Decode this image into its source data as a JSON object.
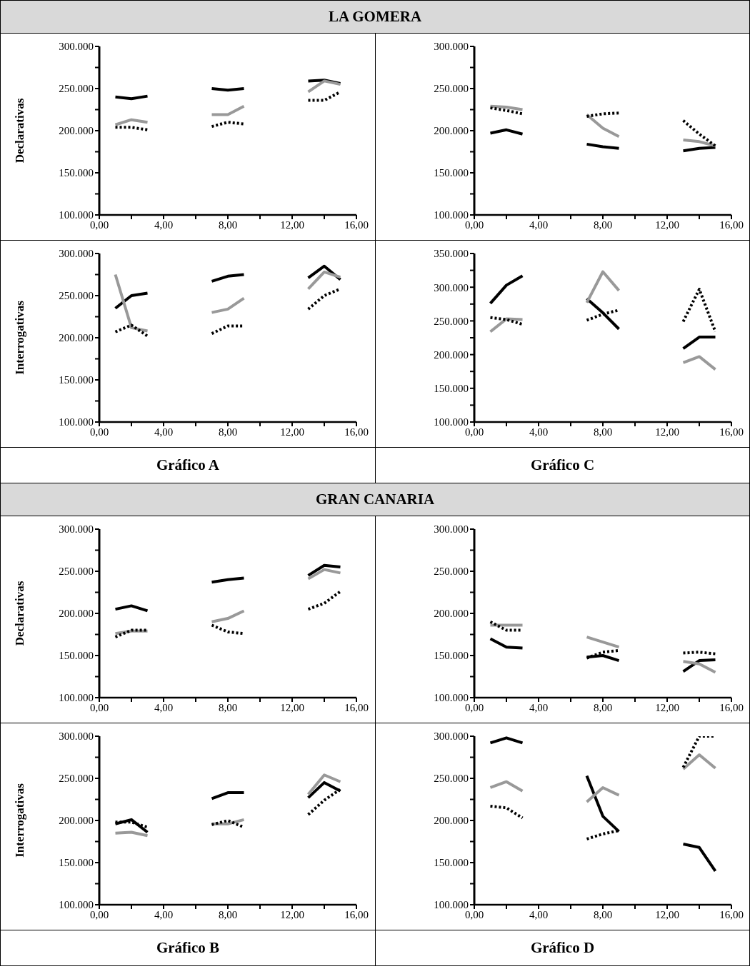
{
  "chart_data": [
    {
      "type": "line",
      "title": "LA GOMERA",
      "ylabel": "Declarativas",
      "xlim": [
        0,
        16
      ],
      "ylim": [
        100000,
        300000
      ],
      "xticks": [
        {
          "value": 0,
          "label": "0,00"
        },
        {
          "value": 2,
          "label": null
        },
        {
          "value": 4,
          "label": "4,00"
        },
        {
          "value": 6,
          "label": null
        },
        {
          "value": 8,
          "label": "8,00"
        },
        {
          "value": 10,
          "label": null
        },
        {
          "value": 12,
          "label": "12,00"
        },
        {
          "value": 14,
          "label": null
        },
        {
          "value": 16,
          "label": "16,00"
        }
      ],
      "yticks": [
        {
          "value": 100000,
          "label": "100.000"
        },
        {
          "value": 125000,
          "label": null
        },
        {
          "value": 150000,
          "label": "150.000"
        },
        {
          "value": 175000,
          "label": null
        },
        {
          "value": 200000,
          "label": "200.000"
        },
        {
          "value": 225000,
          "label": null
        },
        {
          "value": 250000,
          "label": "250.000"
        },
        {
          "value": 275000,
          "label": null
        },
        {
          "value": 300000,
          "label": "300.000"
        }
      ],
      "series": [
        {
          "color": "#000000",
          "line_style": "solid",
          "x": [
            1,
            2,
            3
          ],
          "values": [
            240000,
            238000,
            241000
          ]
        },
        {
          "color": "#000000",
          "line_style": "solid",
          "x": [
            7,
            8,
            9
          ],
          "values": [
            250000,
            248000,
            250000
          ]
        },
        {
          "color": "#000000",
          "line_style": "solid",
          "x": [
            13,
            14,
            15
          ],
          "values": [
            259000,
            260000,
            256000
          ]
        },
        {
          "color": "#999999",
          "line_style": "solid",
          "x": [
            1,
            2,
            3
          ],
          "values": [
            207000,
            213000,
            210000
          ]
        },
        {
          "color": "#999999",
          "line_style": "solid",
          "x": [
            7,
            8,
            9
          ],
          "values": [
            219000,
            219000,
            229000
          ]
        },
        {
          "color": "#999999",
          "line_style": "solid",
          "x": [
            13,
            14,
            15
          ],
          "values": [
            246000,
            259000,
            255000
          ]
        },
        {
          "color": "#000000",
          "line_style": "dotted",
          "x": [
            1,
            2,
            3
          ],
          "values": [
            204000,
            204000,
            201000
          ]
        },
        {
          "color": "#000000",
          "line_style": "dotted",
          "x": [
            7,
            8,
            9
          ],
          "values": [
            205000,
            210000,
            208000
          ]
        },
        {
          "color": "#000000",
          "line_style": "dotted",
          "x": [
            13,
            14,
            15
          ],
          "values": [
            236000,
            236000,
            246000
          ]
        }
      ]
    },
    {
      "type": "line",
      "xlim": [
        0,
        16
      ],
      "ylim": [
        100000,
        300000
      ],
      "xticks": [
        {
          "value": 0,
          "label": "0,00"
        },
        {
          "value": 2,
          "label": null
        },
        {
          "value": 4,
          "label": "4,00"
        },
        {
          "value": 6,
          "label": null
        },
        {
          "value": 8,
          "label": "8,00"
        },
        {
          "value": 10,
          "label": null
        },
        {
          "value": 12,
          "label": "12,00"
        },
        {
          "value": 14,
          "label": null
        },
        {
          "value": 16,
          "label": "16,00"
        }
      ],
      "yticks": [
        {
          "value": 100000,
          "label": "100.000"
        },
        {
          "value": 125000,
          "label": null
        },
        {
          "value": 150000,
          "label": "150.000"
        },
        {
          "value": 175000,
          "label": null
        },
        {
          "value": 200000,
          "label": "200.000"
        },
        {
          "value": 225000,
          "label": null
        },
        {
          "value": 250000,
          "label": "250.000"
        },
        {
          "value": 275000,
          "label": null
        },
        {
          "value": 300000,
          "label": "300.000"
        }
      ],
      "series": [
        {
          "color": "#000000",
          "line_style": "solid",
          "x": [
            1,
            2,
            3
          ],
          "values": [
            197000,
            201000,
            196000
          ]
        },
        {
          "color": "#000000",
          "line_style": "solid",
          "x": [
            7,
            8,
            9
          ],
          "values": [
            184000,
            181000,
            179000
          ]
        },
        {
          "color": "#000000",
          "line_style": "solid",
          "x": [
            13,
            14,
            15
          ],
          "values": [
            176000,
            179000,
            180000
          ]
        },
        {
          "color": "#999999",
          "line_style": "solid",
          "x": [
            1,
            2,
            3
          ],
          "values": [
            229000,
            228000,
            225000
          ]
        },
        {
          "color": "#999999",
          "line_style": "solid",
          "x": [
            7,
            8,
            9
          ],
          "values": [
            219000,
            203000,
            193000
          ]
        },
        {
          "color": "#999999",
          "line_style": "solid",
          "x": [
            13,
            14,
            15
          ],
          "values": [
            189000,
            187000,
            182000
          ]
        },
        {
          "color": "#000000",
          "line_style": "dotted",
          "x": [
            1,
            2,
            3
          ],
          "values": [
            227000,
            224000,
            220000
          ]
        },
        {
          "color": "#000000",
          "line_style": "dotted",
          "x": [
            7,
            8,
            9
          ],
          "values": [
            217000,
            220000,
            221000
          ]
        },
        {
          "color": "#000000",
          "line_style": "dotted",
          "x": [
            13,
            14,
            15
          ],
          "values": [
            212000,
            196000,
            182000
          ]
        }
      ]
    },
    {
      "type": "line",
      "ylabel": "Interrogativas",
      "xlabel": "Gráfico A",
      "xlim": [
        0,
        16
      ],
      "ylim": [
        100000,
        300000
      ],
      "xticks": [
        {
          "value": 0,
          "label": "0,00"
        },
        {
          "value": 2,
          "label": null
        },
        {
          "value": 4,
          "label": "4,00"
        },
        {
          "value": 6,
          "label": null
        },
        {
          "value": 8,
          "label": "8,00"
        },
        {
          "value": 10,
          "label": null
        },
        {
          "value": 12,
          "label": "12,00"
        },
        {
          "value": 14,
          "label": null
        },
        {
          "value": 16,
          "label": "16,00"
        }
      ],
      "yticks": [
        {
          "value": 100000,
          "label": "100.000"
        },
        {
          "value": 125000,
          "label": null
        },
        {
          "value": 150000,
          "label": "150.000"
        },
        {
          "value": 175000,
          "label": null
        },
        {
          "value": 200000,
          "label": "200.000"
        },
        {
          "value": 225000,
          "label": null
        },
        {
          "value": 250000,
          "label": "250.000"
        },
        {
          "value": 275000,
          "label": null
        },
        {
          "value": 300000,
          "label": "300.000"
        }
      ],
      "series": [
        {
          "color": "#000000",
          "line_style": "solid",
          "x": [
            1,
            2,
            3
          ],
          "values": [
            235000,
            250000,
            253000
          ]
        },
        {
          "color": "#000000",
          "line_style": "solid",
          "x": [
            7,
            8,
            9
          ],
          "values": [
            267000,
            273000,
            275000
          ]
        },
        {
          "color": "#000000",
          "line_style": "solid",
          "x": [
            13,
            14,
            15
          ],
          "values": [
            271000,
            285000,
            269000
          ]
        },
        {
          "color": "#999999",
          "line_style": "solid",
          "x": [
            1,
            2,
            3
          ],
          "values": [
            275000,
            212000,
            208000
          ]
        },
        {
          "color": "#999999",
          "line_style": "solid",
          "x": [
            7,
            8,
            9
          ],
          "values": [
            230000,
            234000,
            247000
          ]
        },
        {
          "color": "#999999",
          "line_style": "solid",
          "x": [
            13,
            14,
            15
          ],
          "values": [
            258000,
            278000,
            272000
          ]
        },
        {
          "color": "#000000",
          "line_style": "dotted",
          "x": [
            1,
            2,
            3
          ],
          "values": [
            207000,
            215000,
            202000
          ]
        },
        {
          "color": "#000000",
          "line_style": "dotted",
          "x": [
            7,
            8,
            9
          ],
          "values": [
            205000,
            214000,
            214000
          ]
        },
        {
          "color": "#000000",
          "line_style": "dotted",
          "x": [
            13,
            14,
            15
          ],
          "values": [
            234000,
            250000,
            258000
          ]
        }
      ]
    },
    {
      "type": "line",
      "xlabel": "Gráfico C",
      "xlim": [
        0,
        16
      ],
      "ylim": [
        100000,
        350000
      ],
      "xticks": [
        {
          "value": 0,
          "label": "0,00"
        },
        {
          "value": 2,
          "label": null
        },
        {
          "value": 4,
          "label": "4,00"
        },
        {
          "value": 6,
          "label": null
        },
        {
          "value": 8,
          "label": "8,00"
        },
        {
          "value": 10,
          "label": null
        },
        {
          "value": 12,
          "label": "12,00"
        },
        {
          "value": 14,
          "label": null
        },
        {
          "value": 16,
          "label": "16,00"
        }
      ],
      "yticks": [
        {
          "value": 100000,
          "label": "100.000"
        },
        {
          "value": 125000,
          "label": null
        },
        {
          "value": 150000,
          "label": "150.000"
        },
        {
          "value": 175000,
          "label": null
        },
        {
          "value": 200000,
          "label": "200.000"
        },
        {
          "value": 225000,
          "label": null
        },
        {
          "value": 250000,
          "label": "250.000"
        },
        {
          "value": 275000,
          "label": null
        },
        {
          "value": 300000,
          "label": "300.000"
        },
        {
          "value": 325000,
          "label": null
        },
        {
          "value": 350000,
          "label": "350.000"
        }
      ],
      "series": [
        {
          "color": "#000000",
          "line_style": "solid",
          "x": [
            1,
            2,
            3
          ],
          "values": [
            276000,
            303000,
            317000
          ]
        },
        {
          "color": "#000000",
          "line_style": "solid",
          "x": [
            7,
            8,
            9
          ],
          "values": [
            283000,
            262000,
            238000
          ]
        },
        {
          "color": "#000000",
          "line_style": "solid",
          "x": [
            13,
            14,
            15
          ],
          "values": [
            209000,
            226000,
            226000
          ]
        },
        {
          "color": "#999999",
          "line_style": "solid",
          "x": [
            1,
            2,
            3
          ],
          "values": [
            234000,
            253000,
            252000
          ]
        },
        {
          "color": "#999999",
          "line_style": "solid",
          "x": [
            7,
            8,
            9
          ],
          "values": [
            277000,
            323000,
            295000
          ]
        },
        {
          "color": "#999999",
          "line_style": "solid",
          "x": [
            13,
            14,
            15
          ],
          "values": [
            188000,
            197000,
            178000
          ]
        },
        {
          "color": "#000000",
          "line_style": "dotted",
          "x": [
            1,
            2,
            3
          ],
          "values": [
            255000,
            252000,
            245000
          ]
        },
        {
          "color": "#000000",
          "line_style": "dotted",
          "x": [
            7,
            8,
            9
          ],
          "values": [
            251000,
            260000,
            266000
          ]
        },
        {
          "color": "#000000",
          "line_style": "dotted",
          "x": [
            13,
            14,
            15
          ],
          "values": [
            249000,
            297000,
            234000
          ]
        }
      ]
    },
    {
      "type": "line",
      "title": "GRAN CANARIA",
      "ylabel": "Declarativas",
      "xlim": [
        0,
        16
      ],
      "ylim": [
        100000,
        300000
      ],
      "xticks": [
        {
          "value": 0,
          "label": "0,00"
        },
        {
          "value": 2,
          "label": null
        },
        {
          "value": 4,
          "label": "4,00"
        },
        {
          "value": 6,
          "label": null
        },
        {
          "value": 8,
          "label": "8,00"
        },
        {
          "value": 10,
          "label": null
        },
        {
          "value": 12,
          "label": "12,00"
        },
        {
          "value": 14,
          "label": null
        },
        {
          "value": 16,
          "label": "16,00"
        }
      ],
      "yticks": [
        {
          "value": 100000,
          "label": "100.000"
        },
        {
          "value": 125000,
          "label": null
        },
        {
          "value": 150000,
          "label": "150.000"
        },
        {
          "value": 175000,
          "label": null
        },
        {
          "value": 200000,
          "label": "200.000"
        },
        {
          "value": 225000,
          "label": null
        },
        {
          "value": 250000,
          "label": "250.000"
        },
        {
          "value": 275000,
          "label": null
        },
        {
          "value": 300000,
          "label": "300.000"
        }
      ],
      "series": [
        {
          "color": "#000000",
          "line_style": "solid",
          "x": [
            1,
            2,
            3
          ],
          "values": [
            205000,
            209000,
            203000
          ]
        },
        {
          "color": "#000000",
          "line_style": "solid",
          "x": [
            7,
            8,
            9
          ],
          "values": [
            237000,
            240000,
            242000
          ]
        },
        {
          "color": "#000000",
          "line_style": "solid",
          "x": [
            13,
            14,
            15
          ],
          "values": [
            245000,
            257000,
            255000
          ]
        },
        {
          "color": "#999999",
          "line_style": "solid",
          "x": [
            1,
            2,
            3
          ],
          "values": [
            176000,
            179000,
            179000
          ]
        },
        {
          "color": "#999999",
          "line_style": "solid",
          "x": [
            7,
            8,
            9
          ],
          "values": [
            190000,
            194000,
            203000
          ]
        },
        {
          "color": "#999999",
          "line_style": "solid",
          "x": [
            13,
            14,
            15
          ],
          "values": [
            241000,
            252000,
            248000
          ]
        },
        {
          "color": "#000000",
          "line_style": "dotted",
          "x": [
            1,
            2,
            3
          ],
          "values": [
            172000,
            180000,
            180000
          ]
        },
        {
          "color": "#000000",
          "line_style": "dotted",
          "x": [
            7,
            8,
            9
          ],
          "values": [
            186000,
            178000,
            176000
          ]
        },
        {
          "color": "#000000",
          "line_style": "dotted",
          "x": [
            13,
            14,
            15
          ],
          "values": [
            205000,
            212000,
            226000
          ]
        }
      ]
    },
    {
      "type": "line",
      "xlim": [
        0,
        16
      ],
      "ylim": [
        100000,
        300000
      ],
      "xticks": [
        {
          "value": 0,
          "label": "0,00"
        },
        {
          "value": 2,
          "label": null
        },
        {
          "value": 4,
          "label": "4,00"
        },
        {
          "value": 6,
          "label": null
        },
        {
          "value": 8,
          "label": "8,00"
        },
        {
          "value": 10,
          "label": null
        },
        {
          "value": 12,
          "label": "12,00"
        },
        {
          "value": 14,
          "label": null
        },
        {
          "value": 16,
          "label": "16,00"
        }
      ],
      "yticks": [
        {
          "value": 100000,
          "label": "100.000"
        },
        {
          "value": 125000,
          "label": null
        },
        {
          "value": 150000,
          "label": "150.000"
        },
        {
          "value": 175000,
          "label": null
        },
        {
          "value": 200000,
          "label": "200.000"
        },
        {
          "value": 225000,
          "label": null
        },
        {
          "value": 250000,
          "label": "250.000"
        },
        {
          "value": 275000,
          "label": null
        },
        {
          "value": 300000,
          "label": "300.000"
        }
      ],
      "series": [
        {
          "color": "#000000",
          "line_style": "solid",
          "x": [
            1,
            2,
            3
          ],
          "values": [
            170000,
            160000,
            159000
          ]
        },
        {
          "color": "#000000",
          "line_style": "solid",
          "x": [
            7,
            8,
            9
          ],
          "values": [
            148000,
            150000,
            144000
          ]
        },
        {
          "color": "#000000",
          "line_style": "solid",
          "x": [
            13,
            14,
            15
          ],
          "values": [
            131000,
            144000,
            145000
          ]
        },
        {
          "color": "#999999",
          "line_style": "solid",
          "x": [
            1,
            2,
            3
          ],
          "values": [
            186000,
            186000,
            186000
          ]
        },
        {
          "color": "#999999",
          "line_style": "solid",
          "x": [
            7,
            8,
            9
          ],
          "values": [
            172000,
            166000,
            160000
          ]
        },
        {
          "color": "#999999",
          "line_style": "solid",
          "x": [
            13,
            14,
            15
          ],
          "values": [
            143000,
            140000,
            130000
          ]
        },
        {
          "color": "#000000",
          "line_style": "dotted",
          "x": [
            1,
            2,
            3
          ],
          "values": [
            190000,
            180000,
            180000
          ]
        },
        {
          "color": "#000000",
          "line_style": "dotted",
          "x": [
            7,
            8,
            9
          ],
          "values": [
            147000,
            154000,
            156000
          ]
        },
        {
          "color": "#000000",
          "line_style": "dotted",
          "x": [
            13,
            14,
            15
          ],
          "values": [
            153000,
            154000,
            152000
          ]
        }
      ]
    },
    {
      "type": "line",
      "ylabel": "Interrogativas",
      "xlabel": "Gráfico B",
      "xlim": [
        0,
        16
      ],
      "ylim": [
        100000,
        300000
      ],
      "xticks": [
        {
          "value": 0,
          "label": "0,00"
        },
        {
          "value": 2,
          "label": null
        },
        {
          "value": 4,
          "label": "4,00"
        },
        {
          "value": 6,
          "label": null
        },
        {
          "value": 8,
          "label": "8,00"
        },
        {
          "value": 10,
          "label": null
        },
        {
          "value": 12,
          "label": "12,00"
        },
        {
          "value": 14,
          "label": null
        },
        {
          "value": 16,
          "label": "16,00"
        }
      ],
      "yticks": [
        {
          "value": 100000,
          "label": "100.000"
        },
        {
          "value": 125000,
          "label": null
        },
        {
          "value": 150000,
          "label": "150.000"
        },
        {
          "value": 175000,
          "label": null
        },
        {
          "value": 200000,
          "label": "200.000"
        },
        {
          "value": 225000,
          "label": null
        },
        {
          "value": 250000,
          "label": "250.000"
        },
        {
          "value": 275000,
          "label": null
        },
        {
          "value": 300000,
          "label": "300.000"
        }
      ],
      "series": [
        {
          "color": "#000000",
          "line_style": "solid",
          "x": [
            1,
            2,
            3
          ],
          "values": [
            196000,
            201000,
            186000
          ]
        },
        {
          "color": "#000000",
          "line_style": "solid",
          "x": [
            7,
            8,
            9
          ],
          "values": [
            226000,
            233000,
            233000
          ]
        },
        {
          "color": "#000000",
          "line_style": "solid",
          "x": [
            13,
            14,
            15
          ],
          "values": [
            227000,
            245000,
            235000
          ]
        },
        {
          "color": "#999999",
          "line_style": "solid",
          "x": [
            1,
            2,
            3
          ],
          "values": [
            185000,
            186000,
            182000
          ]
        },
        {
          "color": "#999999",
          "line_style": "solid",
          "x": [
            7,
            8,
            9
          ],
          "values": [
            196000,
            196000,
            201000
          ]
        },
        {
          "color": "#999999",
          "line_style": "solid",
          "x": [
            13,
            14,
            15
          ],
          "values": [
            231000,
            254000,
            246000
          ]
        },
        {
          "color": "#000000",
          "line_style": "dotted",
          "x": [
            1,
            2,
            3
          ],
          "values": [
            198000,
            198000,
            192000
          ]
        },
        {
          "color": "#000000",
          "line_style": "dotted",
          "x": [
            7,
            8,
            9
          ],
          "values": [
            195000,
            200000,
            192000
          ]
        },
        {
          "color": "#000000",
          "line_style": "dotted",
          "x": [
            13,
            14,
            15
          ],
          "values": [
            207000,
            224000,
            237000
          ]
        }
      ]
    },
    {
      "type": "line",
      "xlabel": "Gráfico D",
      "xlim": [
        0,
        16
      ],
      "ylim": [
        100000,
        300000
      ],
      "xticks": [
        {
          "value": 0,
          "label": "0,00"
        },
        {
          "value": 2,
          "label": null
        },
        {
          "value": 4,
          "label": "4,00"
        },
        {
          "value": 6,
          "label": null
        },
        {
          "value": 8,
          "label": "8,00"
        },
        {
          "value": 10,
          "label": null
        },
        {
          "value": 12,
          "label": "12,00"
        },
        {
          "value": 14,
          "label": null
        },
        {
          "value": 16,
          "label": "16,00"
        }
      ],
      "yticks": [
        {
          "value": 100000,
          "label": "100.000"
        },
        {
          "value": 125000,
          "label": null
        },
        {
          "value": 150000,
          "label": "150.000"
        },
        {
          "value": 175000,
          "label": null
        },
        {
          "value": 200000,
          "label": "200.000"
        },
        {
          "value": 225000,
          "label": null
        },
        {
          "value": 250000,
          "label": "250.000"
        },
        {
          "value": 275000,
          "label": null
        },
        {
          "value": 300000,
          "label": "300.000"
        }
      ],
      "series": [
        {
          "color": "#000000",
          "line_style": "solid",
          "x": [
            1,
            2,
            3
          ],
          "values": [
            292000,
            298000,
            292000
          ]
        },
        {
          "color": "#000000",
          "line_style": "solid",
          "x": [
            7,
            8,
            9
          ],
          "values": [
            253000,
            205000,
            187000
          ]
        },
        {
          "color": "#000000",
          "line_style": "solid",
          "x": [
            13,
            14,
            15
          ],
          "values": [
            172000,
            168000,
            140000
          ]
        },
        {
          "color": "#999999",
          "line_style": "solid",
          "x": [
            1,
            2,
            3
          ],
          "values": [
            239000,
            246000,
            235000
          ]
        },
        {
          "color": "#999999",
          "line_style": "solid",
          "x": [
            7,
            8,
            9
          ],
          "values": [
            222000,
            239000,
            230000
          ]
        },
        {
          "color": "#999999",
          "line_style": "solid",
          "x": [
            13,
            14,
            15
          ],
          "values": [
            261000,
            278000,
            262000
          ]
        },
        {
          "color": "#000000",
          "line_style": "dotted",
          "x": [
            1,
            2,
            3
          ],
          "values": [
            217000,
            215000,
            203000
          ]
        },
        {
          "color": "#000000",
          "line_style": "dotted",
          "x": [
            7,
            8,
            9
          ],
          "values": [
            178000,
            184000,
            188000
          ]
        },
        {
          "color": "#000000",
          "line_style": "dotted",
          "x": [
            13,
            14,
            15
          ],
          "values": [
            263000,
            300000,
            300000
          ]
        }
      ]
    }
  ]
}
